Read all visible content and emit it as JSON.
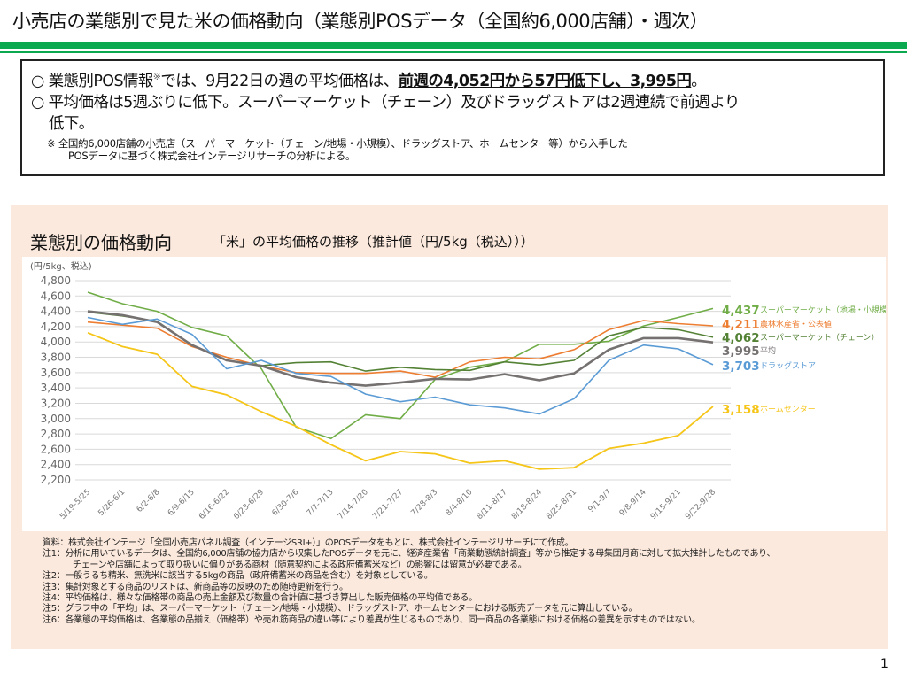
{
  "page": {
    "title": "小売店の業態別で見た米の価格動向（業態別POSデータ（全国約6,000店舗）・週次）",
    "page_number": "1",
    "accent_color": "#0aa84f"
  },
  "summary": {
    "bullet1_prefix": "○  業態別POS情報",
    "bullet1_mark": "※",
    "bullet1_mid": "では、9月22日の週の平均価格は、",
    "bullet1_emph": "前週の4,052円から57円低下し、3,995円",
    "bullet1_end": "。",
    "bullet2": "○  平均価格は5週ぶりに低下。スーパーマーケット（チェーン）及びドラッグストアは2週連続で前週より",
    "bullet2_cont": "低下。",
    "footnote1": "※  全国約6,000店舗の小売店（スーパーマーケット（チェーン/地場・小規模）、ドラッグストア、ホームセンター等）から入手した",
    "footnote2": "POSデータに基づく株式会社インテージリサーチの分析による。"
  },
  "panel": {
    "title": "業態別の価格動向",
    "subtitle": "「米」の平均価格の推移（推計値（円/5kg（税込）））"
  },
  "chart_data": {
    "type": "line",
    "ylabel": "(円/5kg、税込)",
    "ylim": [
      2200,
      4800
    ],
    "yticks": [
      "4,800",
      "4,600",
      "4,400",
      "4,200",
      "4,000",
      "3,800",
      "3,600",
      "3,400",
      "3,200",
      "3,000",
      "2,800",
      "2,600",
      "2,400",
      "2,200"
    ],
    "grid": true,
    "legend": "right-end labels",
    "categories": [
      "5/19-5/25",
      "5/26-6/1",
      "6/2-6/8",
      "6/9-6/15",
      "6/16-6/22",
      "6/23-6/29",
      "6/30-7/6",
      "7/7-7/13",
      "7/14-7/20",
      "7/21-7/27",
      "7/28-8/3",
      "8/4-8/10",
      "8/11-8/17",
      "8/18-8/24",
      "8/25-8/31",
      "9/1-9/7",
      "9/8-9/14",
      "9/15-9/21",
      "9/22-9/28"
    ],
    "series": [
      {
        "name": "スーパーマーケット（地場・小規模）",
        "end_label": "4,437",
        "color": "#70ad47",
        "width": 1.6,
        "values": [
          4650,
          4500,
          4400,
          4190,
          4080,
          3650,
          2890,
          2740,
          3050,
          3000,
          3510,
          3670,
          3740,
          3970,
          3970,
          4010,
          4210,
          4320,
          4437
        ]
      },
      {
        "name": "農林水産省・公表値",
        "end_label": "4,211",
        "color": "#ed7d31",
        "width": 1.6,
        "values": [
          4260,
          4220,
          4180,
          3940,
          3800,
          3690,
          3600,
          3590,
          3590,
          3620,
          3540,
          3740,
          3800,
          3780,
          3900,
          4160,
          4280,
          4240,
          4211
        ]
      },
      {
        "name": "スーパーマーケット（チェーン）",
        "end_label": "4,062",
        "color": "#548235",
        "width": 1.6,
        "values": [
          4390,
          4340,
          4270,
          3960,
          3760,
          3690,
          3730,
          3740,
          3620,
          3670,
          3640,
          3630,
          3740,
          3700,
          3760,
          4080,
          4190,
          4160,
          4062
        ]
      },
      {
        "name": "平均",
        "end_label": "3,995",
        "color": "#767171",
        "width": 2.6,
        "values": [
          4400,
          4350,
          4260,
          3960,
          3760,
          3690,
          3540,
          3470,
          3430,
          3470,
          3520,
          3510,
          3580,
          3500,
          3590,
          3900,
          4050,
          4050,
          3995
        ]
      },
      {
        "name": "ドラッグストア",
        "end_label": "3,703",
        "color": "#5b9bd5",
        "width": 1.6,
        "values": [
          4320,
          4230,
          4300,
          4100,
          3650,
          3760,
          3590,
          3550,
          3320,
          3220,
          3280,
          3180,
          3140,
          3060,
          3260,
          3760,
          3960,
          3910,
          3703
        ]
      },
      {
        "name": "ホームセンター",
        "end_label": "3,158",
        "color": "#f5c518",
        "width": 1.8,
        "values": [
          4120,
          3940,
          3840,
          3420,
          3310,
          3090,
          2900,
          2660,
          2450,
          2570,
          2540,
          2420,
          2450,
          2340,
          2360,
          2610,
          2680,
          2780,
          3158
        ]
      }
    ]
  },
  "notes": [
    "資料：株式会社インテージ「全国小売店パネル調査（インテージSRI+）」のPOSデータをもとに、株式会社インテージリサーチにて作成。",
    "注1：分析に用いているデータは、全国約6,000店舗の協力店から収集したPOSデータを元に、経済産業省「商業動態統計調査」等から推定する母集団月商に対して拡大推計したものであり、",
    "チェーンや店舗によって取り扱いに偏りがある商材（随意契約による政府備蓄米など）の影響には留意が必要である。",
    "注2：一般うるち精米、無洗米に該当する5kgの商品（政府備蓄米の商品を含む）を対象としている。",
    "注3：集計対象とする商品のリストは、新商品等の反映のため随時更新を行う。",
    "注4：平均価格は、様々な価格帯の商品の売上金額及び数量の合計値に基づき算出した販売価格の平均値である。",
    "注5：グラフ中の「平均」は、スーパーマーケット（チェーン/地場・小規模）、ドラッグストア、ホームセンターにおける販売データを元に算出している。",
    "注6：各業態の平均価格は、各業態の品揃え（価格帯）や売れ筋商品の違い等により差異が生じるものであり、同一商品の各業態における価格の差異を示すものではない。"
  ]
}
